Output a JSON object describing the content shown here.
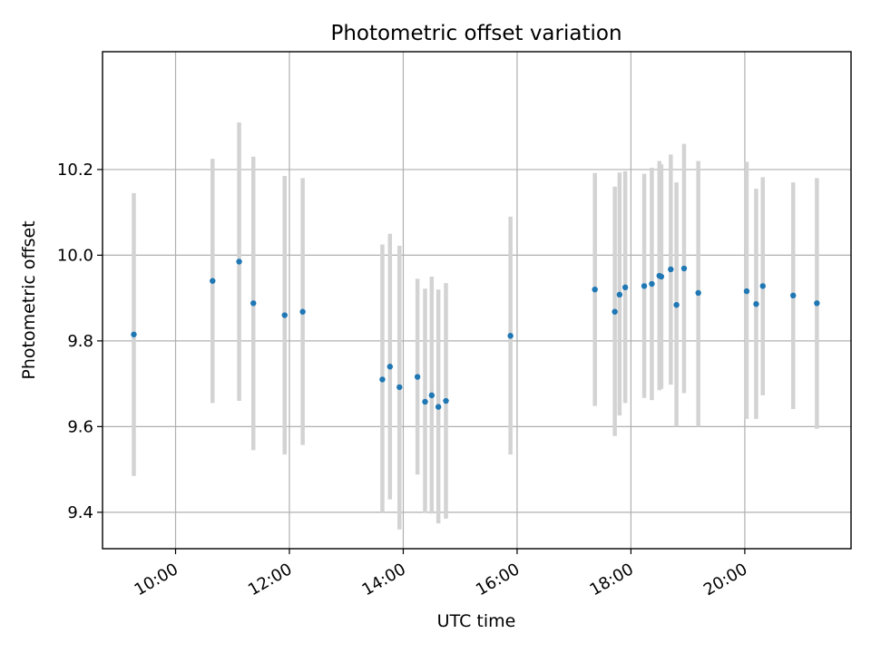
{
  "chart_data": {
    "type": "scatter",
    "title": "Photometric offset variation",
    "xlabel": "UTC time",
    "ylabel": "Photometric offset",
    "xlim": [
      "08:43",
      "21:52"
    ],
    "ylim": [
      9.315,
      10.475
    ],
    "grid": true,
    "x_ticks": [
      "10:00",
      "12:00",
      "14:00",
      "16:00",
      "18:00",
      "20:00"
    ],
    "y_ticks": [
      "9.4",
      "9.6",
      "9.8",
      "10.0",
      "10.2"
    ],
    "colors": {
      "point": "#1f77b4",
      "errorbar": "#d3d3d3",
      "grid": "#b0b0b0"
    },
    "points": [
      {
        "x": "09:16",
        "y": 9.815,
        "low": 9.485,
        "high": 10.145
      },
      {
        "x": "10:39",
        "y": 9.94,
        "low": 9.655,
        "high": 10.225
      },
      {
        "x": "11:07",
        "y": 9.985,
        "low": 9.66,
        "high": 10.31
      },
      {
        "x": "11:22",
        "y": 9.888,
        "low": 9.545,
        "high": 10.23
      },
      {
        "x": "11:55",
        "y": 9.86,
        "low": 9.535,
        "high": 10.185
      },
      {
        "x": "12:14",
        "y": 9.868,
        "low": 9.557,
        "high": 10.18
      },
      {
        "x": "13:38",
        "y": 9.71,
        "low": 9.4,
        "high": 10.025
      },
      {
        "x": "13:46",
        "y": 9.74,
        "low": 9.43,
        "high": 10.05
      },
      {
        "x": "13:56",
        "y": 9.692,
        "low": 9.36,
        "high": 10.022
      },
      {
        "x": "14:15",
        "y": 9.716,
        "low": 9.488,
        "high": 9.945
      },
      {
        "x": "14:23",
        "y": 9.658,
        "low": 9.398,
        "high": 9.922
      },
      {
        "x": "14:30",
        "y": 9.673,
        "low": 9.397,
        "high": 9.95
      },
      {
        "x": "14:37",
        "y": 9.646,
        "low": 9.374,
        "high": 9.92
      },
      {
        "x": "14:45",
        "y": 9.66,
        "low": 9.385,
        "high": 9.935
      },
      {
        "x": "15:53",
        "y": 9.812,
        "low": 9.535,
        "high": 10.09
      },
      {
        "x": "17:22",
        "y": 9.92,
        "low": 9.648,
        "high": 10.192
      },
      {
        "x": "17:43",
        "y": 9.868,
        "low": 9.578,
        "high": 10.16
      },
      {
        "x": "17:48",
        "y": 9.908,
        "low": 9.626,
        "high": 10.193
      },
      {
        "x": "17:54",
        "y": 9.925,
        "low": 9.655,
        "high": 10.196
      },
      {
        "x": "18:14",
        "y": 9.928,
        "low": 9.667,
        "high": 10.19
      },
      {
        "x": "18:22",
        "y": 9.933,
        "low": 9.662,
        "high": 10.204
      },
      {
        "x": "18:30",
        "y": 9.952,
        "low": 9.685,
        "high": 10.22
      },
      {
        "x": "18:32",
        "y": 9.95,
        "low": 9.688,
        "high": 10.212
      },
      {
        "x": "18:42",
        "y": 9.967,
        "low": 9.698,
        "high": 10.235
      },
      {
        "x": "18:48",
        "y": 9.884,
        "low": 9.6,
        "high": 10.17
      },
      {
        "x": "18:56",
        "y": 9.969,
        "low": 9.678,
        "high": 10.26
      },
      {
        "x": "19:11",
        "y": 9.912,
        "low": 9.6,
        "high": 10.22
      },
      {
        "x": "20:02",
        "y": 9.916,
        "low": 9.618,
        "high": 10.218
      },
      {
        "x": "20:12",
        "y": 9.886,
        "low": 9.618,
        "high": 10.155
      },
      {
        "x": "20:19",
        "y": 9.928,
        "low": 9.673,
        "high": 10.182
      },
      {
        "x": "20:51",
        "y": 9.906,
        "low": 9.641,
        "high": 10.17
      },
      {
        "x": "21:16",
        "y": 9.888,
        "low": 9.595,
        "high": 10.18
      }
    ]
  }
}
